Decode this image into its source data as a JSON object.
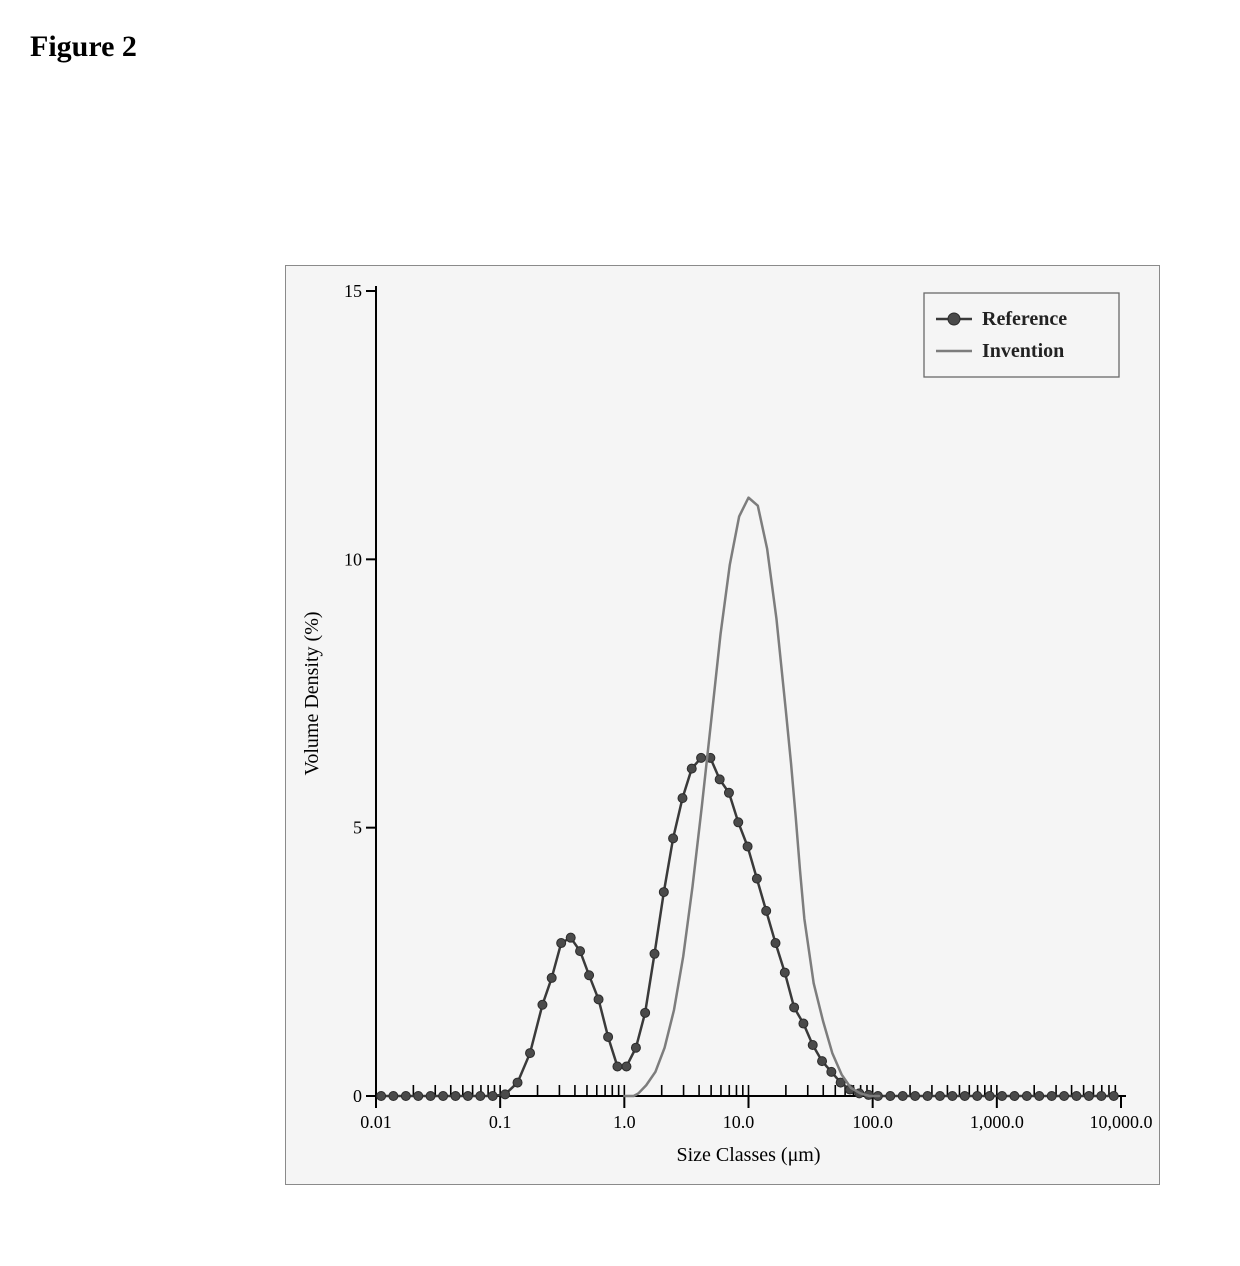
{
  "figure_label": "Figure 2",
  "chart": {
    "type": "line",
    "background_color": "#f5f5f5",
    "border_color": "#8a8a8a",
    "plot_background_color": "#f5f5f5",
    "axis_color": "#000000",
    "axis_line_width": 2,
    "xlabel": "Size Classes (μm)",
    "ylabel": "Volume Density (%)",
    "label_fontsize": 20,
    "label_font_family": "Georgia, 'Times New Roman', serif",
    "tick_fontsize": 18,
    "x_scale": "log",
    "y_scale": "linear",
    "xlim": [
      0.01,
      10000
    ],
    "ylim": [
      0,
      15
    ],
    "y_ticks": [
      0,
      5,
      10,
      15
    ],
    "x_major_ticks": [
      0.01,
      0.1,
      1.0,
      100.0,
      1000.0,
      10000.0
    ],
    "x_major_tick_labels": [
      "0.01",
      "0.1",
      "1.0",
      "100.0",
      "1,000.0",
      "10,000.0"
    ],
    "x_extra_tick": {
      "value": 10.0,
      "label": "10.0"
    },
    "x_minor_ticks_per_decade": [
      2,
      3,
      4,
      5,
      6,
      7,
      8,
      9
    ],
    "legend": {
      "position": "top-right",
      "border_color": "#6a6a6a",
      "background_color": "#f5f5f5",
      "font_size": 20,
      "font_family": "Georgia, 'Times New Roman', serif",
      "font_weight": "bold",
      "items": [
        {
          "label": "Reference",
          "swatch": "marker_line",
          "line_color": "#3a3a3a",
          "marker_color": "#4a4a4a"
        },
        {
          "label": "Invention",
          "swatch": "line",
          "line_color": "#7d7d7d"
        }
      ]
    },
    "series": [
      {
        "name": "Reference",
        "type": "line_marker",
        "line_color": "#3a3a3a",
        "line_width": 2.5,
        "marker_shape": "circle",
        "marker_size": 9,
        "marker_fill": "#4a4a4a",
        "marker_stroke": "#2b2b2b",
        "marker_stroke_width": 1,
        "points": [
          [
            0.011,
            0.0
          ],
          [
            0.0138,
            0.0
          ],
          [
            0.0174,
            0.0
          ],
          [
            0.0219,
            0.0
          ],
          [
            0.0275,
            0.0
          ],
          [
            0.0347,
            0.0
          ],
          [
            0.0437,
            0.0
          ],
          [
            0.055,
            0.0
          ],
          [
            0.0692,
            0.0
          ],
          [
            0.0871,
            0.0
          ],
          [
            0.1096,
            0.03
          ],
          [
            0.138,
            0.25
          ],
          [
            0.174,
            0.8
          ],
          [
            0.219,
            1.7
          ],
          [
            0.26,
            2.2
          ],
          [
            0.31,
            2.85
          ],
          [
            0.37,
            2.95
          ],
          [
            0.44,
            2.7
          ],
          [
            0.52,
            2.25
          ],
          [
            0.62,
            1.8
          ],
          [
            0.74,
            1.1
          ],
          [
            0.88,
            0.55
          ],
          [
            1.04,
            0.55
          ],
          [
            1.24,
            0.9
          ],
          [
            1.47,
            1.55
          ],
          [
            1.75,
            2.65
          ],
          [
            2.08,
            3.8
          ],
          [
            2.47,
            4.8
          ],
          [
            2.94,
            5.55
          ],
          [
            3.49,
            6.1
          ],
          [
            4.15,
            6.3
          ],
          [
            4.93,
            6.3
          ],
          [
            5.86,
            5.9
          ],
          [
            6.96,
            5.65
          ],
          [
            8.27,
            5.1
          ],
          [
            9.83,
            4.65
          ],
          [
            11.68,
            4.05
          ],
          [
            13.88,
            3.45
          ],
          [
            16.5,
            2.85
          ],
          [
            19.61,
            2.3
          ],
          [
            23.3,
            1.65
          ],
          [
            27.69,
            1.35
          ],
          [
            32.91,
            0.95
          ],
          [
            39.11,
            0.65
          ],
          [
            46.48,
            0.45
          ],
          [
            55.24,
            0.25
          ],
          [
            65.65,
            0.12
          ],
          [
            78.02,
            0.05
          ],
          [
            92.72,
            0.02
          ],
          [
            110.19,
            0.0
          ],
          [
            138.71,
            0.0
          ],
          [
            174.62,
            0.0
          ],
          [
            219.82,
            0.0
          ],
          [
            276.72,
            0.0
          ],
          [
            348.36,
            0.0
          ],
          [
            438.54,
            0.0
          ],
          [
            552.06,
            0.0
          ],
          [
            694.97,
            0.0
          ],
          [
            874.86,
            0.0
          ],
          [
            1101.33,
            0.0
          ],
          [
            1386.42,
            0.0
          ],
          [
            1745.3,
            0.0
          ],
          [
            2197.08,
            0.0
          ],
          [
            2765.8,
            0.0
          ],
          [
            3481.74,
            0.0
          ],
          [
            4382.99,
            0.0
          ],
          [
            5517.53,
            0.0
          ],
          [
            6945.77,
            0.0
          ],
          [
            8743.7,
            0.0
          ]
        ]
      },
      {
        "name": "Invention",
        "type": "line",
        "line_color": "#7d7d7d",
        "line_width": 2.5,
        "points": [
          [
            1.0,
            0.0
          ],
          [
            1.19,
            0.0
          ],
          [
            1.3,
            0.05
          ],
          [
            1.5,
            0.2
          ],
          [
            1.78,
            0.45
          ],
          [
            2.11,
            0.9
          ],
          [
            2.51,
            1.6
          ],
          [
            2.98,
            2.6
          ],
          [
            3.54,
            3.9
          ],
          [
            4.21,
            5.4
          ],
          [
            5.01,
            7.0
          ],
          [
            5.95,
            8.6
          ],
          [
            7.07,
            9.9
          ],
          [
            8.41,
            10.8
          ],
          [
            10.0,
            11.15
          ],
          [
            11.88,
            11.0
          ],
          [
            14.12,
            10.2
          ],
          [
            16.78,
            8.9
          ],
          [
            19.95,
            7.2
          ],
          [
            22.0,
            6.2
          ],
          [
            24.0,
            5.2
          ],
          [
            26.0,
            4.2
          ],
          [
            28.18,
            3.3
          ],
          [
            33.49,
            2.1
          ],
          [
            39.8,
            1.4
          ],
          [
            47.3,
            0.8
          ],
          [
            56.22,
            0.4
          ],
          [
            66.82,
            0.15
          ],
          [
            79.41,
            0.05
          ],
          [
            94.37,
            0.0
          ],
          [
            112.2,
            0.0
          ]
        ]
      }
    ]
  }
}
